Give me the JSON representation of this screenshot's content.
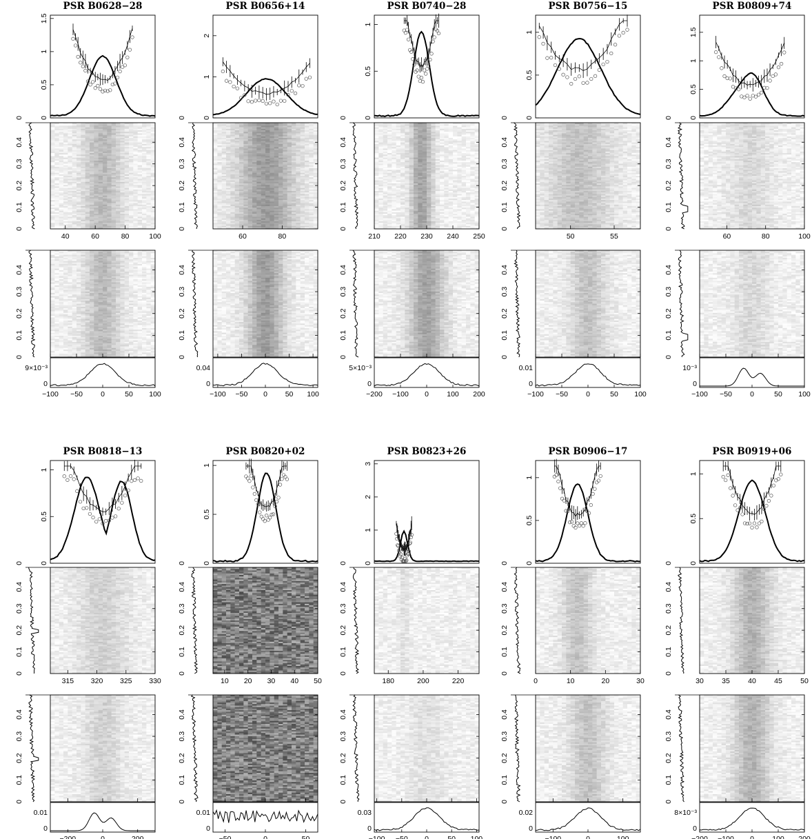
{
  "figure": {
    "panel_titles": [
      "PSR B0628−28",
      "PSR B0656+14",
      "PSR B0740−28",
      "PSR B0756−15",
      "PSR B0809+74",
      "PSR B0818−13",
      "PSR B0820+02",
      "PSR B0823+26",
      "PSR B0906−17",
      "PSR B0919+06"
    ]
  },
  "chart_data": [
    {
      "type": "line",
      "title": "PSR B0628−28",
      "profile_peak": 1.0,
      "profile_ylim": [
        0,
        1.55
      ],
      "profile_yticks": [
        "0",
        "0.5",
        "1",
        "1.5"
      ],
      "phase_ticks": [
        "40",
        "60",
        "80",
        "100"
      ],
      "phase_range": [
        30,
        100
      ],
      "fluct_ticks": [
        "0",
        "0.1",
        "0.2",
        "0.3",
        "0.4"
      ],
      "fluct_range": [
        0,
        0.49
      ],
      "lag_ticks": [
        "−100",
        "−50",
        "0",
        "50",
        "100"
      ],
      "lag_range": [
        -100,
        100
      ],
      "acf_label": "9×10⁻³",
      "acf_zero": "0",
      "profile_center": 65,
      "profile_width": 9,
      "stack_density": 0.35,
      "series": [
        {
          "name": "",
          "values": []
        }
      ]
    },
    {
      "type": "line",
      "title": "PSR B0656+14",
      "profile_peak": 1.0,
      "profile_ylim": [
        0,
        2.5
      ],
      "profile_yticks": [
        "0",
        "1",
        "2"
      ],
      "phase_ticks": [
        "60",
        "80"
      ],
      "phase_range": [
        45,
        98
      ],
      "fluct_ticks": [
        "0",
        "0.1",
        "0.2",
        "0.3",
        "0.4"
      ],
      "fluct_range": [
        0,
        0.49
      ],
      "lag_ticks": [
        "−100",
        "−50",
        "0",
        "50",
        "100"
      ],
      "lag_range": [
        -110,
        110
      ],
      "acf_label": "0.04",
      "acf_zero": "0",
      "profile_center": 72,
      "profile_width": 10,
      "stack_density": 0.55
    },
    {
      "type": "line",
      "title": "PSR B0740−28",
      "profile_peak": 1.0,
      "profile_ylim": [
        0,
        1.1
      ],
      "profile_yticks": [
        "0",
        "0.5",
        "1"
      ],
      "phase_ticks": [
        "210",
        "220",
        "230",
        "240",
        "250"
      ],
      "phase_range": [
        210,
        250
      ],
      "fluct_ticks": [
        "0",
        "0.1",
        "0.2",
        "0.3",
        "0.4"
      ],
      "fluct_range": [
        0,
        0.49
      ],
      "lag_ticks": [
        "−200",
        "−100",
        "0",
        "100",
        "200"
      ],
      "lag_range": [
        -200,
        200
      ],
      "acf_label": "5×10⁻³",
      "acf_zero": "0",
      "profile_center": 228,
      "profile_width": 3,
      "stack_density": 0.5
    },
    {
      "type": "line",
      "title": "PSR B0756−15",
      "profile_peak": 1.0,
      "profile_ylim": [
        0,
        1.2
      ],
      "profile_yticks": [
        "0",
        "0.5",
        "1"
      ],
      "phase_ticks": [
        "50",
        "55"
      ],
      "phase_range": [
        46,
        58
      ],
      "fluct_ticks": [
        "0",
        "0.1",
        "0.2",
        "0.3",
        "0.4"
      ],
      "fluct_range": [
        0,
        0.49
      ],
      "lag_ticks": [
        "−100",
        "−50",
        "0",
        "50",
        "100"
      ],
      "lag_range": [
        -100,
        100
      ],
      "acf_label": "0.01",
      "acf_zero": "0",
      "profile_center": 51,
      "profile_width": 2.5,
      "stack_density": 0.3
    },
    {
      "type": "line",
      "title": "PSR B0809+74",
      "profile_peak": 1.0,
      "profile_ylim": [
        0,
        1.8
      ],
      "profile_yticks": [
        "0",
        "0.5",
        "1",
        "1.5"
      ],
      "phase_ticks": [
        "60",
        "80",
        "100"
      ],
      "phase_range": [
        46,
        100
      ],
      "fluct_ticks": [
        "0",
        "0.1",
        "0.2",
        "0.3",
        "0.4"
      ],
      "fluct_range": [
        0,
        0.49
      ],
      "lag_ticks": [
        "−100",
        "−50",
        "0",
        "50",
        "100"
      ],
      "lag_range": [
        -100,
        100
      ],
      "acf_label": "10⁻³",
      "acf_zero": "0",
      "profile_center": 72,
      "profile_width": 8,
      "stack_density": 0.15
    },
    {
      "type": "line",
      "title": "PSR B0818−13",
      "profile_peak": 1.0,
      "profile_ylim": [
        0,
        1.1
      ],
      "profile_yticks": [
        "0",
        "0.5",
        "1"
      ],
      "phase_ticks": [
        "315",
        "320",
        "325",
        "330"
      ],
      "phase_range": [
        312,
        330
      ],
      "fluct_ticks": [
        "0",
        "0.1",
        "0.2",
        "0.3",
        "0.4"
      ],
      "fluct_range": [
        0,
        0.49
      ],
      "lag_ticks": [
        "−200",
        "0",
        "200"
      ],
      "lag_range": [
        -300,
        300
      ],
      "acf_label": "0.01",
      "acf_zero": "0",
      "profile_center": 321,
      "profile_width": 3,
      "stack_density": 0.2
    },
    {
      "type": "line",
      "title": "PSR B0820+02",
      "profile_peak": 1.0,
      "profile_ylim": [
        0,
        1.05
      ],
      "profile_yticks": [
        "0",
        "0.5",
        "1"
      ],
      "phase_ticks": [
        "10",
        "20",
        "30",
        "40",
        "50"
      ],
      "phase_range": [
        5,
        50
      ],
      "fluct_ticks": [
        "0",
        "0.1",
        "0.2",
        "0.3",
        "0.4"
      ],
      "fluct_range": [
        0,
        0.49
      ],
      "lag_ticks": [
        "−50",
        "0",
        "50"
      ],
      "lag_range": [
        -65,
        65
      ],
      "acf_label": "0.01",
      "acf_zero": "0",
      "profile_center": 28,
      "profile_width": 4,
      "stack_density": 0.55
    },
    {
      "type": "line",
      "title": "PSR B0823+26",
      "profile_peak": 1.0,
      "profile_ylim": [
        0,
        3.1
      ],
      "profile_yticks": [
        "0",
        "1",
        "2",
        "3"
      ],
      "phase_ticks": [
        "180",
        "200",
        "220"
      ],
      "phase_range": [
        172,
        232
      ],
      "fluct_ticks": [
        "0",
        "0.1",
        "0.2",
        "0.3",
        "0.4"
      ],
      "fluct_range": [
        0,
        0.49
      ],
      "lag_ticks": [
        "−100",
        "−50",
        "0",
        "50",
        "100"
      ],
      "lag_range": [
        -105,
        105
      ],
      "acf_label": "0.03",
      "acf_zero": "0",
      "profile_center": 189,
      "profile_width": 2,
      "stack_density": 0.1
    },
    {
      "type": "line",
      "title": "PSR B0906−17",
      "profile_peak": 1.0,
      "profile_ylim": [
        0,
        1.2
      ],
      "profile_yticks": [
        "0",
        "0.5",
        "1"
      ],
      "phase_ticks": [
        "0",
        "10",
        "20",
        "30"
      ],
      "phase_range": [
        0,
        30
      ],
      "fluct_ticks": [
        "0",
        "0.1",
        "0.2",
        "0.3",
        "0.4"
      ],
      "fluct_range": [
        0,
        0.49
      ],
      "lag_ticks": [
        "−100",
        "0",
        "100"
      ],
      "lag_range": [
        -150,
        150
      ],
      "acf_label": "0.02",
      "acf_zero": "0",
      "profile_center": 12,
      "profile_width": 3,
      "stack_density": 0.3
    },
    {
      "type": "line",
      "title": "PSR B0919+06",
      "profile_peak": 1.0,
      "profile_ylim": [
        0,
        1.15
      ],
      "profile_yticks": [
        "0",
        "0.5",
        "1"
      ],
      "phase_ticks": [
        "30",
        "35",
        "40",
        "45",
        "50"
      ],
      "phase_range": [
        30,
        50
      ],
      "fluct_ticks": [
        "0",
        "0.1",
        "0.2",
        "0.3",
        "0.4"
      ],
      "fluct_range": [
        0,
        0.49
      ],
      "lag_ticks": [
        "−200",
        "−100",
        "0",
        "100",
        "200"
      ],
      "lag_range": [
        -200,
        200
      ],
      "acf_label": "8×10⁻³",
      "acf_zero": "0",
      "profile_center": 40,
      "profile_width": 2.5,
      "stack_density": 0.4
    }
  ]
}
